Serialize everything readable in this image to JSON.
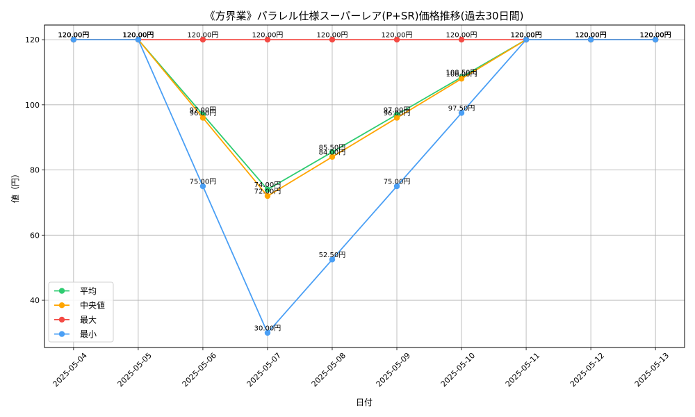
{
  "chart_data": {
    "type": "line",
    "title": "《方界業》パラレル仕様スーパーレア(P+SR)価格推移(過去30日間)",
    "xlabel": "日付",
    "ylabel": "値（円）",
    "categories": [
      "2025-05-04",
      "2025-05-05",
      "2025-05-06",
      "2025-05-07",
      "2025-05-08",
      "2025-05-09",
      "2025-05-10",
      "2025-05-11",
      "2025-05-12",
      "2025-05-13"
    ],
    "ylim": [
      25.5,
      124.5
    ],
    "yticks": [
      40,
      60,
      80,
      100,
      120
    ],
    "grid": true,
    "legend_position": "lower left",
    "series": [
      {
        "name": "平均",
        "color": "#2ecc71",
        "values": [
          120,
          120,
          97,
          74,
          85.5,
          97,
          108.5,
          120,
          120,
          120
        ],
        "labels": [
          "120.00円",
          "120.00円",
          "97.00円",
          "74.00円",
          "85.50円",
          "97.00円",
          "108.50円",
          "120.00円",
          "120.00円",
          "120.00円"
        ]
      },
      {
        "name": "中央値",
        "color": "#ffa500",
        "values": [
          120,
          120,
          96,
          72,
          84,
          96,
          108,
          120,
          120,
          120
        ],
        "labels": [
          "120.00円",
          "120.00円",
          "96.00円",
          "72.00円",
          "84.00円",
          "96.00円",
          "108.00円",
          "120.00円",
          "120.00円",
          "120.00円"
        ]
      },
      {
        "name": "最大",
        "color": "#f44a44",
        "values": [
          120,
          120,
          120,
          120,
          120,
          120,
          120,
          120,
          120,
          120
        ],
        "labels": [
          "120.00円",
          "120.00円",
          "120.00円",
          "120.00円",
          "120.00円",
          "120.00円",
          "120.00円",
          "120.00円",
          "120.00円",
          "120.00円"
        ]
      },
      {
        "name": "最小",
        "color": "#4a9ff5",
        "values": [
          120,
          120,
          75,
          30,
          52.5,
          75,
          97.5,
          120,
          120,
          120
        ],
        "labels": [
          "120.00円",
          "120.00円",
          "75.00円",
          "30.00円",
          "52.50円",
          "75.00円",
          "97.50円",
          "120.00円",
          "120.00円",
          "120.00円"
        ]
      }
    ]
  }
}
